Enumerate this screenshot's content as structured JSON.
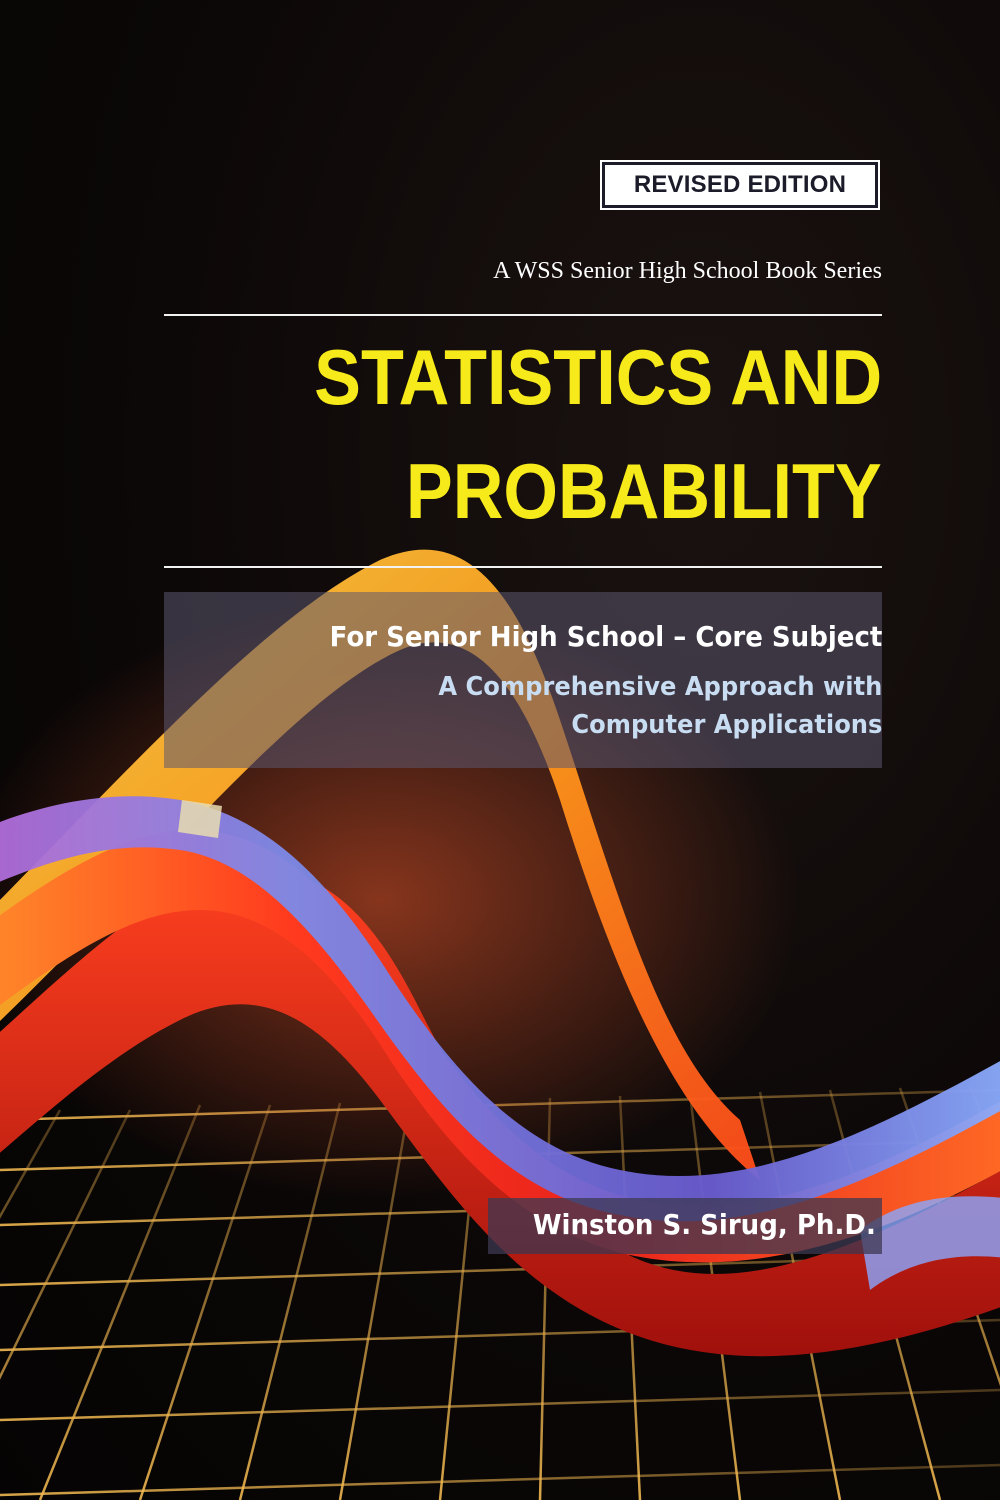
{
  "cover": {
    "edition_badge": "REVISED EDITION",
    "series": "A WSS Senior High School Book Series",
    "title_line1": "STATISTICS AND",
    "title_line2": "PROBABILITY",
    "subtitle_line1": "For Senior High School – Core Subject",
    "subtitle_line2": "A Comprehensive Approach with",
    "subtitle_line3": "Computer Applications",
    "author": "Winston S. Sirug, Ph.D."
  },
  "colors": {
    "background": "#0a0606",
    "title": "#f7ea1a",
    "subtitle_accent": "#c8dcf2",
    "wave_red": "#e8231c",
    "wave_orange": "#ff9a1a",
    "wave_blue": "#6f6cd8",
    "grid": "#c9a64a"
  },
  "icons": {
    "artwork": "grid-and-wave-graphic"
  }
}
